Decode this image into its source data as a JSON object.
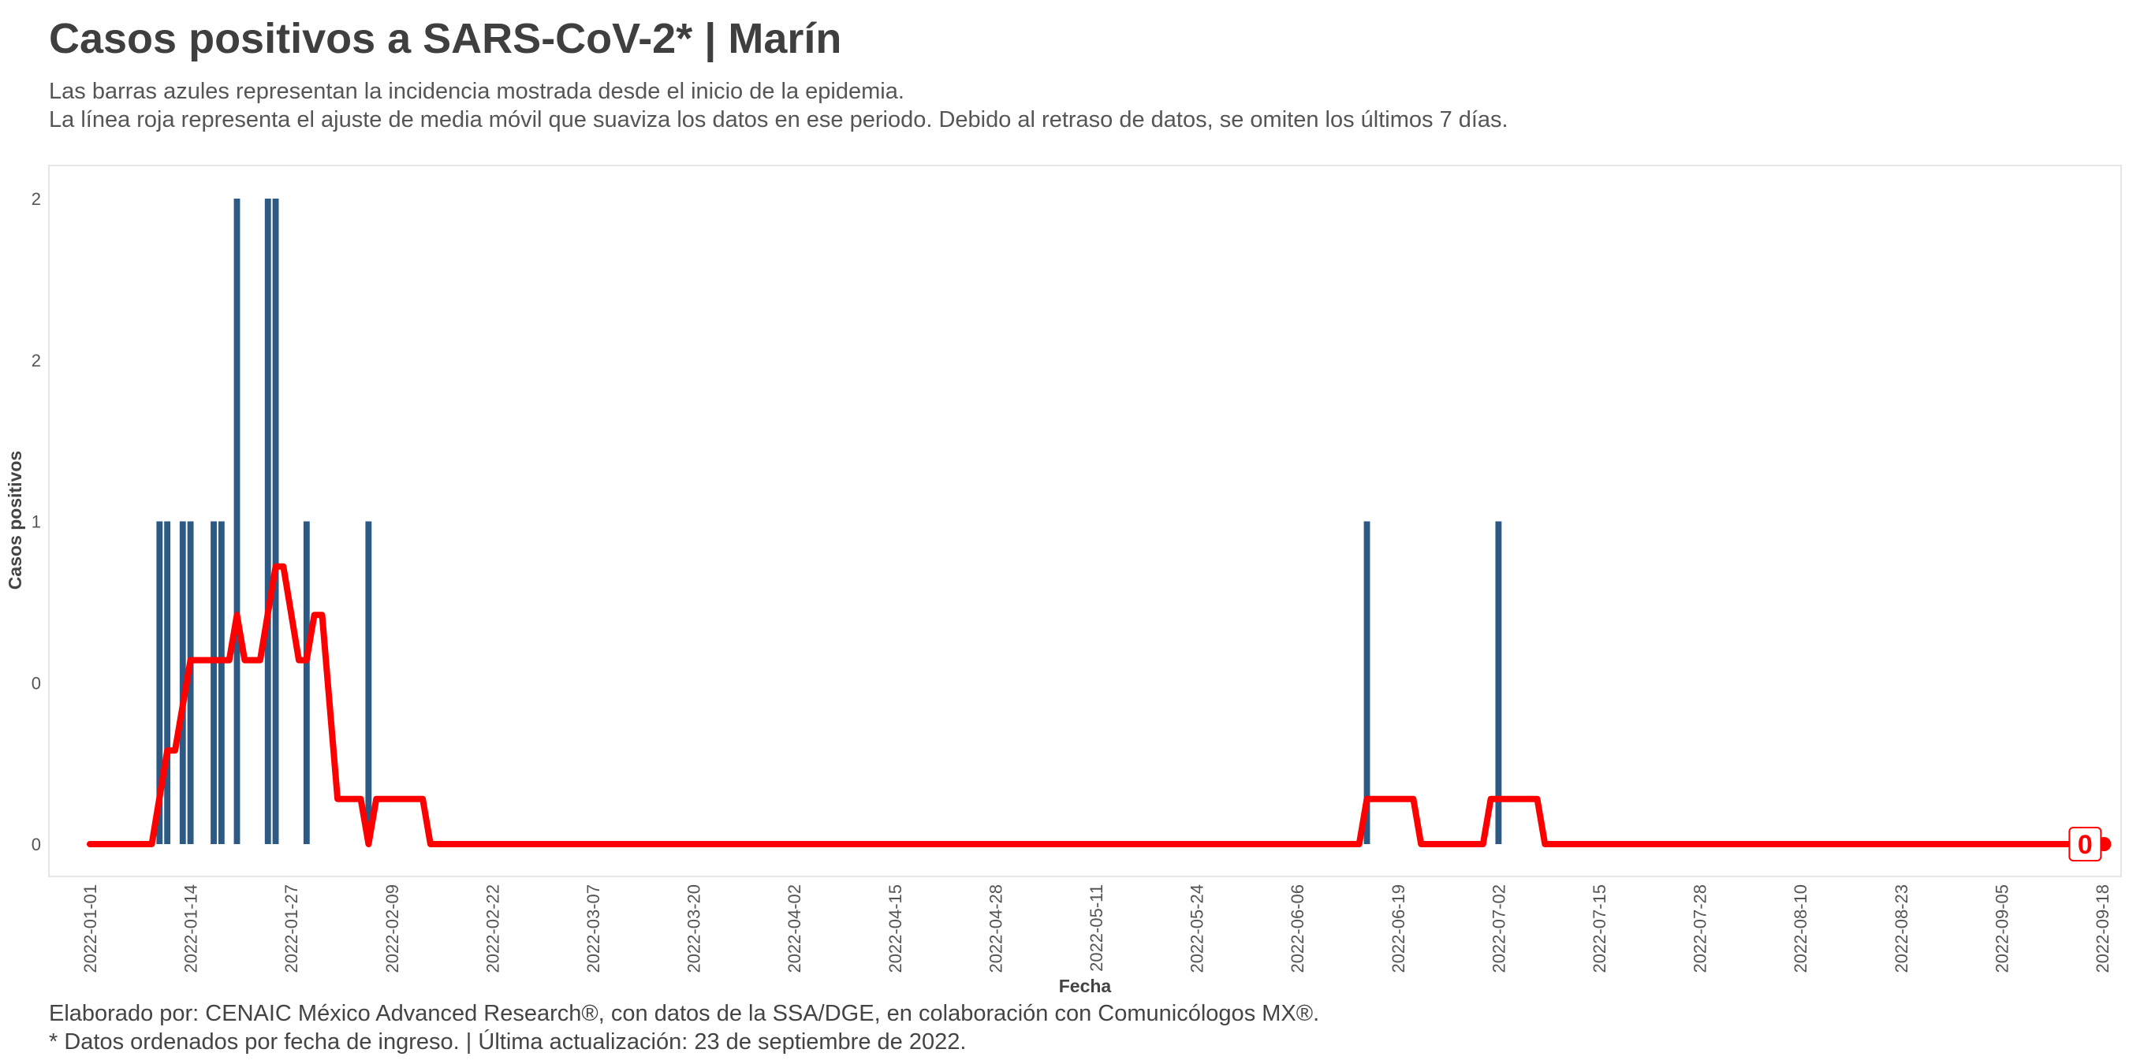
{
  "title": "Casos positivos a SARS-CoV-2* | Marín",
  "subtitle": [
    "Las barras azules representan la incidencia mostrada desde el inicio de la epidemia.",
    "La línea roja representa el ajuste de media móvil que suaviza los datos en ese periodo. Debido al retraso de datos, se omiten los últimos 7 días."
  ],
  "caption": [
    "Elaborado por: CENAIC México Advanced Research®, con datos de la SSA/DGE, en colaboración con Comunicólogos MX®.",
    "* Datos ordenados por fecha de ingreso. | Última actualización: 23 de septiembre de 2022."
  ],
  "colors": {
    "bars": "#2d5a85",
    "line": "#ff0000",
    "panel_border": "#e6e6e6",
    "text": "#444444"
  },
  "chart_data": {
    "type": "bar",
    "xlabel": "Fecha",
    "ylabel": "Casos positivos",
    "xlim": [
      "2022-01-01",
      "2022-09-18"
    ],
    "ylim": [
      0,
      2
    ],
    "y_ticks": [
      {
        "value": 0,
        "label": "0"
      },
      {
        "value": 0.5,
        "label": "0"
      },
      {
        "value": 1,
        "label": "1"
      },
      {
        "value": 1.5,
        "label": "2"
      },
      {
        "value": 2,
        "label": "2"
      }
    ],
    "x_ticks": [
      "2022-01-01",
      "2022-01-14",
      "2022-01-27",
      "2022-02-09",
      "2022-02-22",
      "2022-03-07",
      "2022-03-20",
      "2022-04-02",
      "2022-04-15",
      "2022-04-28",
      "2022-05-11",
      "2022-05-24",
      "2022-06-06",
      "2022-06-19",
      "2022-07-02",
      "2022-07-15",
      "2022-07-28",
      "2022-08-10",
      "2022-08-23",
      "2022-09-05",
      "2022-09-18"
    ],
    "grid": false,
    "series": [
      {
        "type": "bar",
        "points": [
          {
            "date": "2022-01-10",
            "value": 1
          },
          {
            "date": "2022-01-11",
            "value": 1
          },
          {
            "date": "2022-01-13",
            "value": 1
          },
          {
            "date": "2022-01-14",
            "value": 1
          },
          {
            "date": "2022-01-17",
            "value": 1
          },
          {
            "date": "2022-01-18",
            "value": 1
          },
          {
            "date": "2022-01-20",
            "value": 2
          },
          {
            "date": "2022-01-24",
            "value": 2
          },
          {
            "date": "2022-01-25",
            "value": 2
          },
          {
            "date": "2022-01-29",
            "value": 1
          },
          {
            "date": "2022-02-06",
            "value": 1
          },
          {
            "date": "2022-06-15",
            "value": 1
          },
          {
            "date": "2022-07-02",
            "value": 1
          }
        ]
      },
      {
        "type": "line",
        "points": [
          {
            "date": "2022-01-01",
            "value": 0
          },
          {
            "date": "2022-01-09",
            "value": 0
          },
          {
            "date": "2022-01-11",
            "value": 0.29
          },
          {
            "date": "2022-01-12",
            "value": 0.29
          },
          {
            "date": "2022-01-14",
            "value": 0.57
          },
          {
            "date": "2022-01-19",
            "value": 0.57
          },
          {
            "date": "2022-01-20",
            "value": 0.71
          },
          {
            "date": "2022-01-21",
            "value": 0.57
          },
          {
            "date": "2022-01-23",
            "value": 0.57
          },
          {
            "date": "2022-01-25",
            "value": 0.86
          },
          {
            "date": "2022-01-26",
            "value": 0.86
          },
          {
            "date": "2022-01-28",
            "value": 0.57
          },
          {
            "date": "2022-01-29",
            "value": 0.57
          },
          {
            "date": "2022-01-30",
            "value": 0.71
          },
          {
            "date": "2022-01-31",
            "value": 0.71
          },
          {
            "date": "2022-02-02",
            "value": 0.14
          },
          {
            "date": "2022-02-05",
            "value": 0.14
          },
          {
            "date": "2022-02-06",
            "value": 0
          },
          {
            "date": "2022-02-07",
            "value": 0.14
          },
          {
            "date": "2022-02-13",
            "value": 0.14
          },
          {
            "date": "2022-02-14",
            "value": 0
          },
          {
            "date": "2022-06-14",
            "value": 0
          },
          {
            "date": "2022-06-15",
            "value": 0.14
          },
          {
            "date": "2022-06-21",
            "value": 0.14
          },
          {
            "date": "2022-06-22",
            "value": 0
          },
          {
            "date": "2022-06-30",
            "value": 0
          },
          {
            "date": "2022-07-01",
            "value": 0.14
          },
          {
            "date": "2022-07-07",
            "value": 0.14
          },
          {
            "date": "2022-07-08",
            "value": 0
          },
          {
            "date": "2022-09-16",
            "value": 0
          }
        ]
      }
    ],
    "end_marker": {
      "date": "2022-09-16",
      "value": 0,
      "label": "0"
    }
  }
}
